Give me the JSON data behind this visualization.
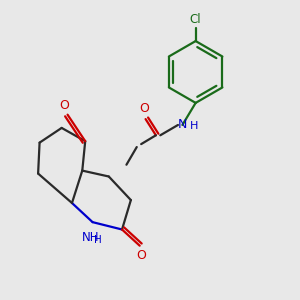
{
  "bg_color": "#e8e8e8",
  "bond_color": "#2a2a2a",
  "dark_green": "#1a6b1a",
  "blue": "#0000cc",
  "red": "#cc0000",
  "bond_width": 1.6,
  "fig_w": 3.0,
  "fig_h": 3.0,
  "dpi": 100,
  "xlim": [
    0,
    10
  ],
  "ylim": [
    0,
    10
  ]
}
